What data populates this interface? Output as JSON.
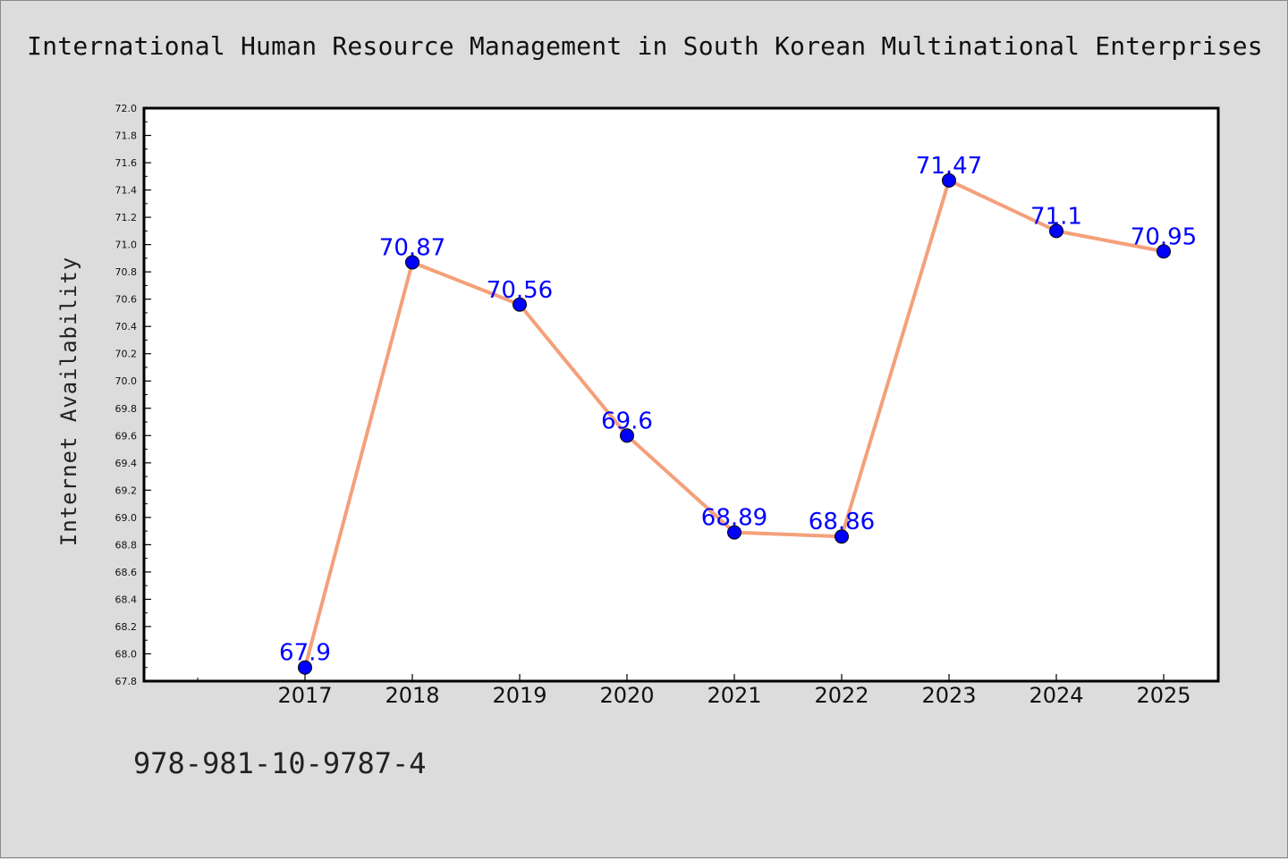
{
  "chart_data": {
    "type": "line",
    "title": "International Human Resource Management in South Korean Multinational Enterprises",
    "ylabel": "Internet Availability",
    "xlabel": "",
    "ylim": [
      67.8,
      72.0
    ],
    "y_ticks": [
      "67.8",
      "68.0",
      "68.2",
      "68.4",
      "68.6",
      "68.8",
      "69.0",
      "69.2",
      "69.4",
      "69.6",
      "69.8",
      "70.0",
      "70.2",
      "70.4",
      "70.6",
      "70.8",
      "71.0",
      "71.2",
      "71.4",
      "71.6",
      "71.8",
      "72.0"
    ],
    "categories": [
      "2017",
      "2018",
      "2019",
      "2020",
      "2021",
      "2022",
      "2023",
      "2024",
      "2025"
    ],
    "series": [
      {
        "values": [
          67.9,
          70.87,
          70.56,
          69.6,
          68.89,
          68.86,
          71.47,
          71.1,
          70.95
        ],
        "labels": [
          "67.9",
          "70.87",
          "70.56",
          "69.6",
          "68.89",
          "68.86",
          "71.47",
          "71.1",
          "70.95"
        ]
      }
    ],
    "line_color": "#f4a07a",
    "marker_color": "#0000ff",
    "label_color": "#0000ff",
    "grid": false,
    "legend": "none"
  },
  "footer": {
    "isbn": "978-981-10-9787-4"
  }
}
